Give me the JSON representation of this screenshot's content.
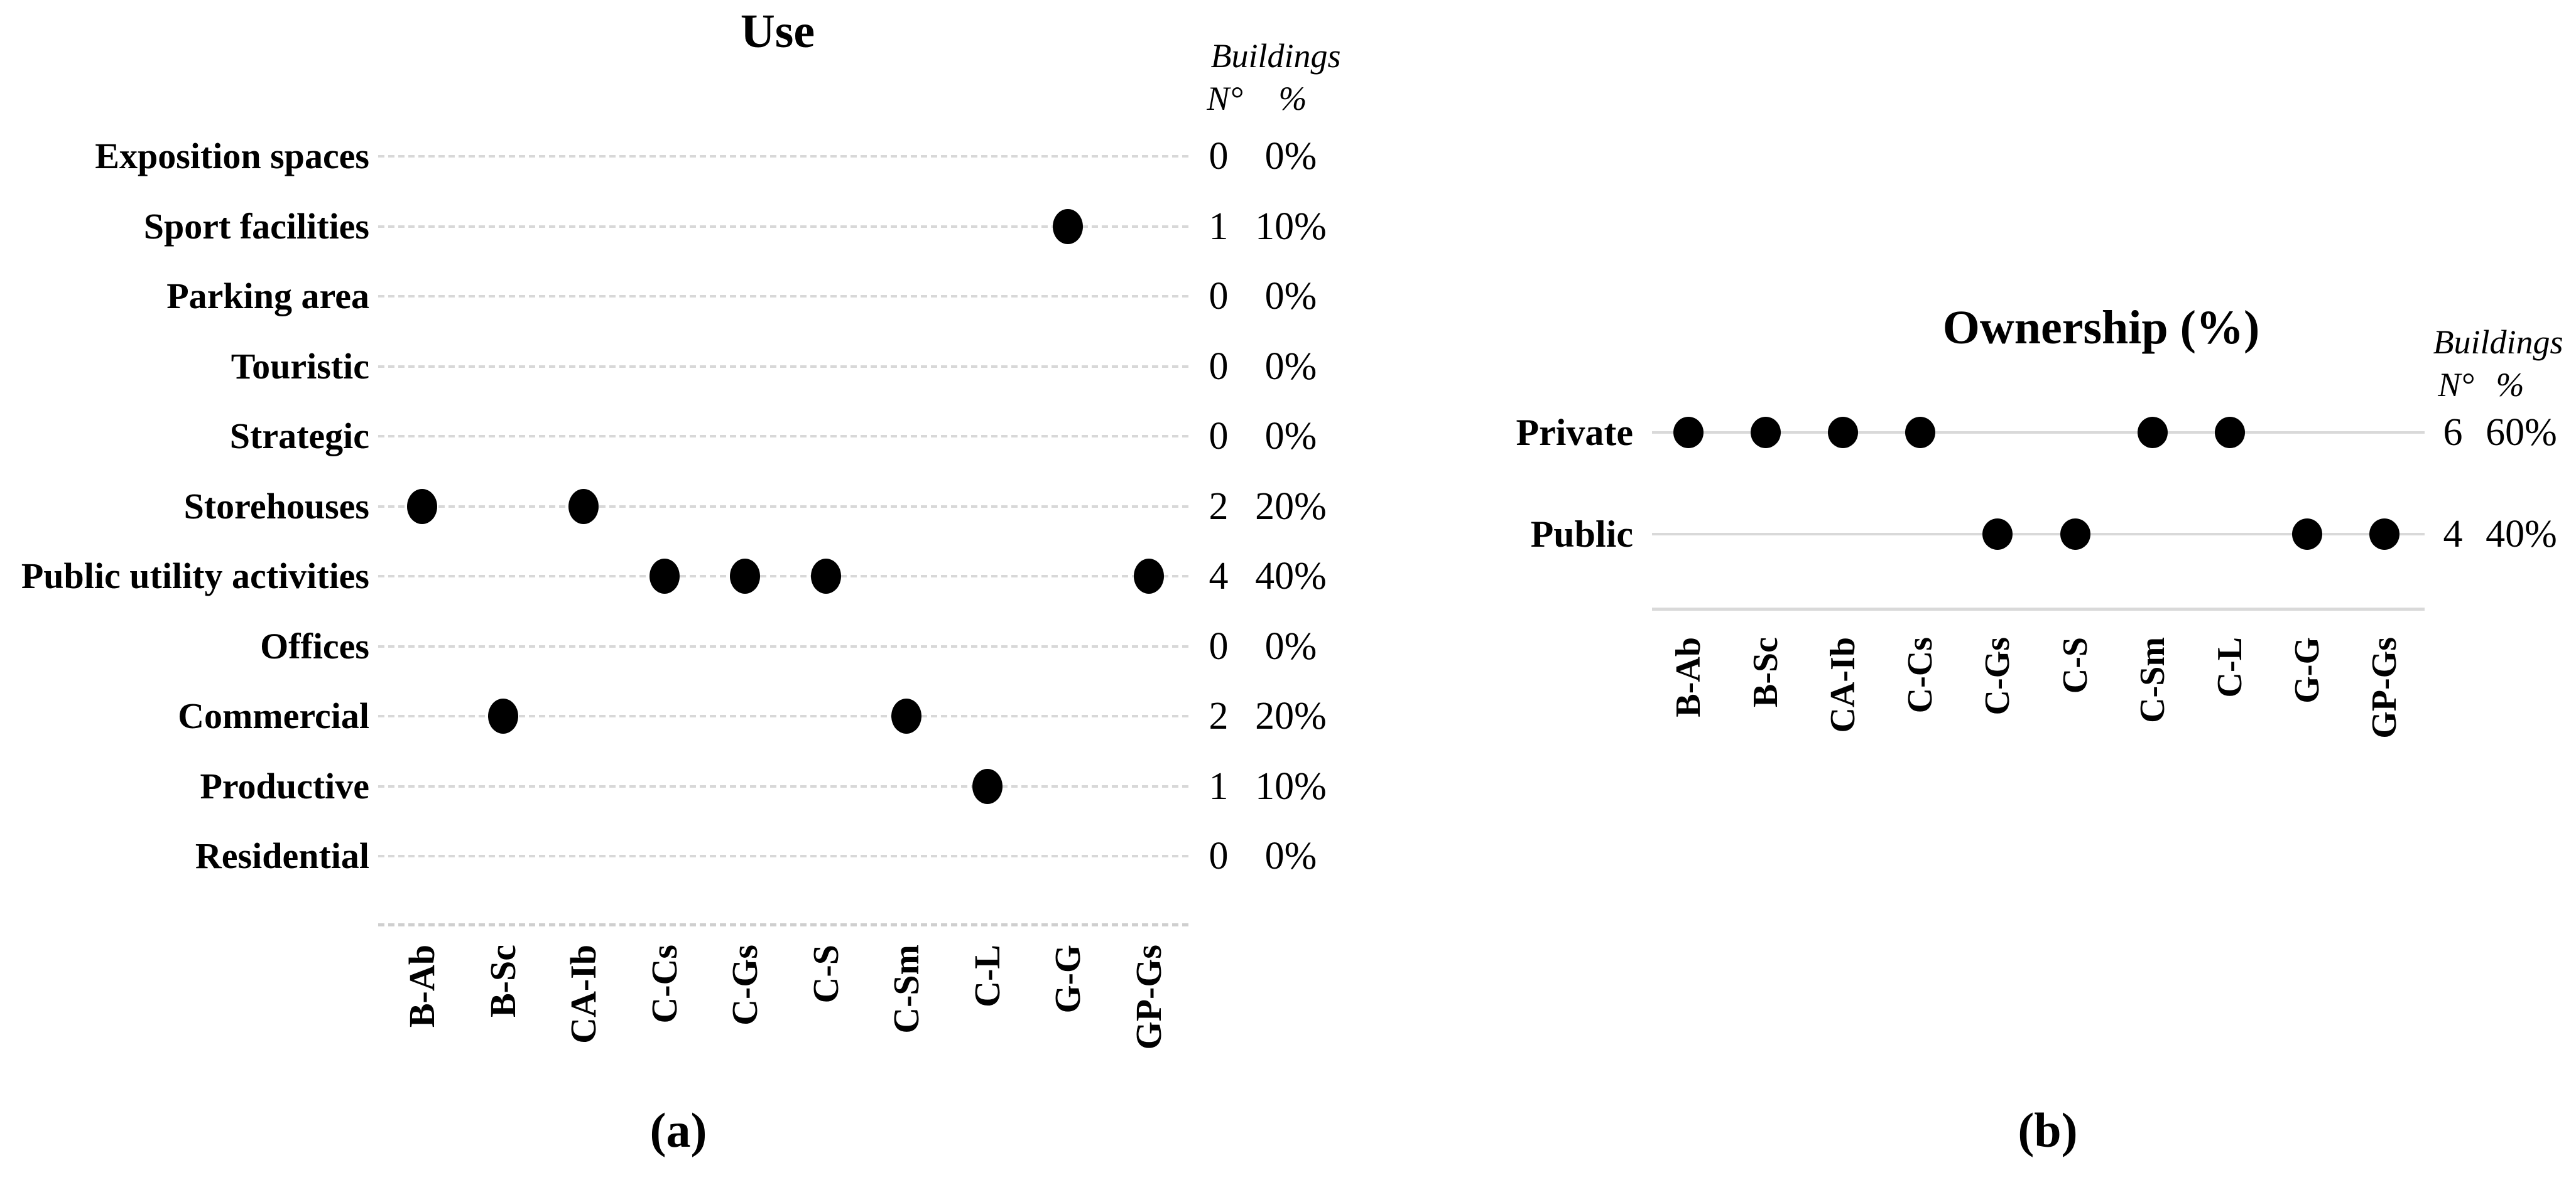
{
  "chart_data": [
    {
      "type": "scatter",
      "panel": "a",
      "title": "Use",
      "caption": "(a)",
      "header": {
        "title": "Buildings",
        "n": "N°",
        "pct": "%"
      },
      "legend_position": "right",
      "grid": true,
      "x_categories": [
        "B-Ab",
        "B-Sc",
        "CA-Ib",
        "C-Cs",
        "C-Gs",
        "C-S",
        "C-Sm",
        "C-L",
        "G-G",
        "GP-Gs"
      ],
      "y_categories": [
        "Exposition spaces",
        "Sport facilities",
        "Parking area",
        "Touristic",
        "Strategic",
        "Storehouses",
        "Public utility activities",
        "Offices",
        "Commercial",
        "Productive",
        "Residential"
      ],
      "rows": [
        {
          "label": "Exposition spaces",
          "count": 0,
          "percent": "0%",
          "marked_x": []
        },
        {
          "label": "Sport facilities",
          "count": 1,
          "percent": "10%",
          "marked_x": [
            "G-G"
          ]
        },
        {
          "label": "Parking area",
          "count": 0,
          "percent": "0%",
          "marked_x": []
        },
        {
          "label": "Touristic",
          "count": 0,
          "percent": "0%",
          "marked_x": []
        },
        {
          "label": "Strategic",
          "count": 0,
          "percent": "0%",
          "marked_x": []
        },
        {
          "label": "Storehouses",
          "count": 2,
          "percent": "20%",
          "marked_x": [
            "B-Ab",
            "CA-Ib"
          ]
        },
        {
          "label": "Public utility activities",
          "count": 4,
          "percent": "40%",
          "marked_x": [
            "C-Cs",
            "C-Gs",
            "C-S",
            "GP-Gs"
          ]
        },
        {
          "label": "Offices",
          "count": 0,
          "percent": "0%",
          "marked_x": []
        },
        {
          "label": "Commercial",
          "count": 2,
          "percent": "20%",
          "marked_x": [
            "B-Sc",
            "C-Sm"
          ]
        },
        {
          "label": "Productive",
          "count": 1,
          "percent": "10%",
          "marked_x": [
            "C-L"
          ]
        },
        {
          "label": "Residential",
          "count": 0,
          "percent": "0%",
          "marked_x": []
        }
      ]
    },
    {
      "type": "scatter",
      "panel": "b",
      "title": "Ownership (%)",
      "caption": "(b)",
      "header": {
        "title": "Buildings",
        "n": "N°",
        "pct": "%"
      },
      "legend_position": "right",
      "grid": true,
      "x_categories": [
        "B-Ab",
        "B-Sc",
        "CA-Ib",
        "C-Cs",
        "C-Gs",
        "C-S",
        "C-Sm",
        "C-L",
        "G-G",
        "GP-Gs"
      ],
      "y_categories": [
        "Private",
        "Public"
      ],
      "rows": [
        {
          "label": "Private",
          "count": 6,
          "percent": "60%",
          "marked_x": [
            "B-Ab",
            "B-Sc",
            "CA-Ib",
            "C-Cs",
            "C-Sm",
            "C-L"
          ]
        },
        {
          "label": "Public",
          "count": 4,
          "percent": "40%",
          "marked_x": [
            "C-Gs",
            "C-S",
            "G-G",
            "GP-Gs"
          ]
        }
      ]
    }
  ],
  "colors": {
    "dot": "#000000",
    "gridline": "#d8d8d8",
    "axis": "#d9d9d9",
    "text": "#000000",
    "background": "#ffffff"
  }
}
